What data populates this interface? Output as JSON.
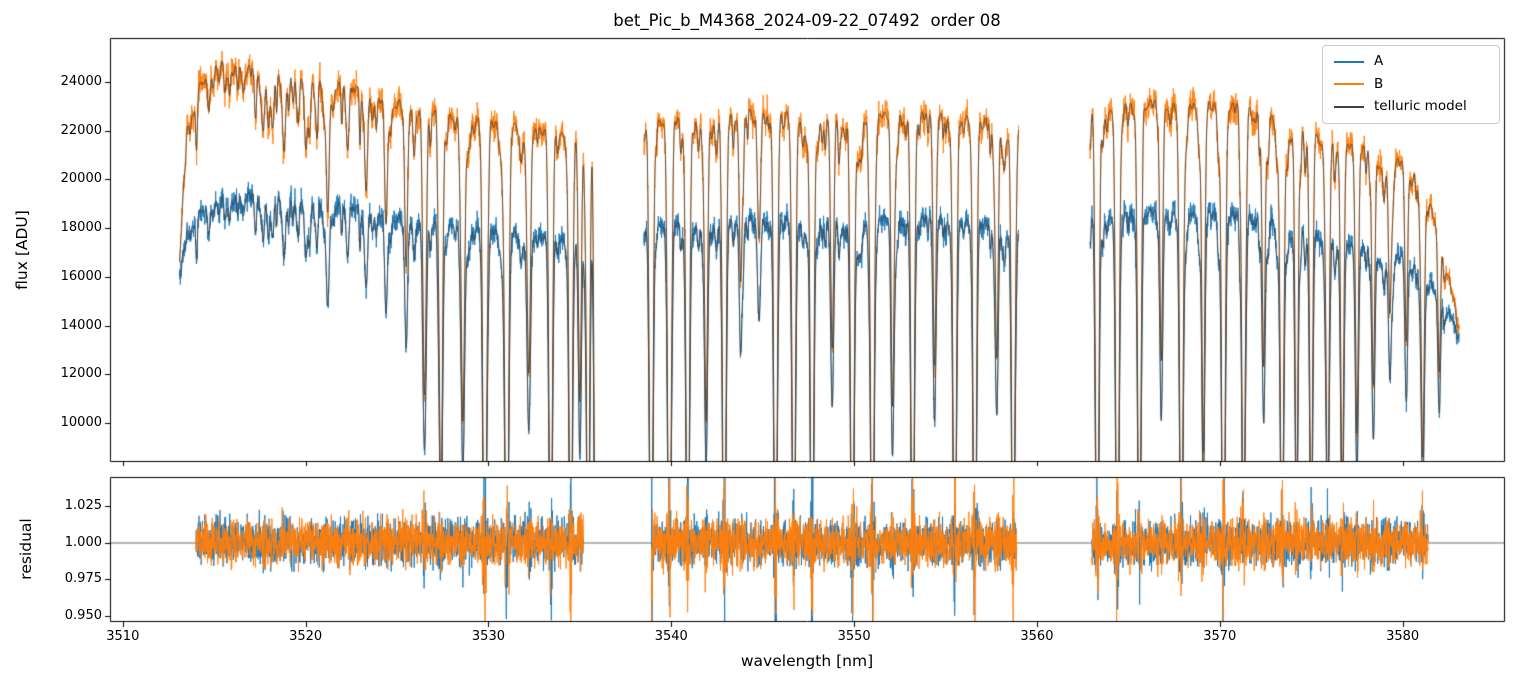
{
  "chart_data": {
    "type": "line",
    "title": "bet_Pic_b_M4368_2024-09-22_07492  order 08",
    "xlabel": "wavelength [nm]",
    "xlim": [
      3509.3,
      3585.6
    ],
    "xticks": [
      3510,
      3520,
      3530,
      3540,
      3550,
      3560,
      3570,
      3580
    ],
    "xtick_labels": [
      "3510",
      "3520",
      "3530",
      "3540",
      "3550",
      "3560",
      "3570",
      "3580"
    ],
    "top_panel": {
      "ylabel": "flux [ADU]",
      "ylim": [
        8400,
        25800
      ],
      "yticks": [
        10000,
        12000,
        14000,
        16000,
        18000,
        20000,
        22000,
        24000
      ],
      "ytick_labels": [
        "10000",
        "12000",
        "14000",
        "16000",
        "18000",
        "20000",
        "22000",
        "24000"
      ]
    },
    "bottom_panel": {
      "ylabel": "residual",
      "ylim": [
        0.946,
        1.0445
      ],
      "yticks": [
        0.95,
        0.975,
        1.0,
        1.025
      ],
      "ytick_labels": [
        "0.950",
        "0.975",
        "1.000",
        "1.025"
      ],
      "hline": 1.0
    },
    "legend": {
      "position": "upper right",
      "entries": [
        {
          "label": "A",
          "color": "#1f77b4"
        },
        {
          "label": "B",
          "color": "#ff7f0e"
        },
        {
          "label": "telluric model",
          "color": "#3f3f3f"
        }
      ]
    },
    "segments": [
      [
        3513.1,
        3535.9
      ],
      [
        3538.5,
        3559.0
      ],
      [
        3562.9,
        3583.1
      ]
    ],
    "residual_segments": [
      [
        3514.0,
        3535.2
      ],
      [
        3538.9,
        3558.9
      ],
      [
        3563.0,
        3581.4
      ]
    ],
    "series": [
      {
        "name": "A",
        "color": "#1f77b4",
        "continuum": [
          [
            3513.0,
            15800
          ],
          [
            3513.5,
            17800
          ],
          [
            3514.3,
            18900
          ],
          [
            3515.5,
            19400
          ],
          [
            3517.0,
            19500
          ],
          [
            3519.0,
            19400
          ],
          [
            3521.0,
            19200
          ],
          [
            3523.0,
            18900
          ],
          [
            3525.0,
            18650
          ],
          [
            3527.0,
            18400
          ],
          [
            3529.0,
            18150
          ],
          [
            3531.0,
            17950
          ],
          [
            3533.0,
            17750
          ],
          [
            3535.9,
            17550
          ],
          [
            3538.5,
            18150
          ],
          [
            3540.0,
            18250
          ],
          [
            3542.0,
            18400
          ],
          [
            3544.0,
            18550
          ],
          [
            3545.5,
            18600
          ],
          [
            3547.0,
            18450
          ],
          [
            3549.0,
            18400
          ],
          [
            3551.0,
            18500
          ],
          [
            3553.0,
            18550
          ],
          [
            3555.0,
            18450
          ],
          [
            3557.0,
            18400
          ],
          [
            3559.0,
            18150
          ],
          [
            3562.9,
            18650
          ],
          [
            3564.5,
            18750
          ],
          [
            3566.5,
            18800
          ],
          [
            3568.5,
            18780
          ],
          [
            3570.5,
            18750
          ],
          [
            3572.0,
            18600
          ],
          [
            3573.5,
            18300
          ],
          [
            3575.0,
            17900
          ],
          [
            3576.5,
            17500
          ],
          [
            3578.0,
            17300
          ],
          [
            3579.5,
            17050
          ],
          [
            3580.8,
            16600
          ],
          [
            3581.8,
            15600
          ],
          [
            3582.6,
            14500
          ],
          [
            3583.1,
            13700
          ]
        ]
      },
      {
        "name": "B",
        "color": "#ff7f0e",
        "continuum": [
          [
            3513.0,
            15500
          ],
          [
            3513.5,
            22000
          ],
          [
            3514.3,
            24200
          ],
          [
            3515.3,
            25000
          ],
          [
            3516.5,
            24800
          ],
          [
            3518.0,
            24400
          ],
          [
            3519.5,
            24500
          ],
          [
            3521.0,
            24200
          ],
          [
            3522.5,
            23900
          ],
          [
            3524.0,
            23500
          ],
          [
            3525.5,
            23350
          ],
          [
            3527.0,
            23000
          ],
          [
            3528.5,
            22700
          ],
          [
            3530.0,
            22500
          ],
          [
            3531.5,
            22300
          ],
          [
            3533.0,
            22150
          ],
          [
            3535.9,
            21800
          ],
          [
            3538.5,
            22400
          ],
          [
            3540.0,
            22500
          ],
          [
            3542.0,
            22700
          ],
          [
            3544.0,
            22900
          ],
          [
            3545.5,
            23000
          ],
          [
            3547.0,
            22700
          ],
          [
            3549.0,
            22600
          ],
          [
            3551.0,
            22800
          ],
          [
            3553.0,
            22800
          ],
          [
            3555.0,
            22700
          ],
          [
            3557.0,
            22600
          ],
          [
            3559.0,
            22300
          ],
          [
            3562.9,
            23000
          ],
          [
            3564.5,
            23200
          ],
          [
            3566.5,
            23300
          ],
          [
            3568.5,
            23250
          ],
          [
            3570.5,
            23200
          ],
          [
            3572.0,
            22950
          ],
          [
            3573.5,
            22500
          ],
          [
            3575.0,
            22000
          ],
          [
            3576.5,
            21600
          ],
          [
            3578.0,
            21400
          ],
          [
            3579.5,
            21000
          ],
          [
            3580.8,
            20300
          ],
          [
            3581.8,
            18500
          ],
          [
            3582.6,
            15800
          ],
          [
            3583.1,
            14000
          ]
        ]
      },
      {
        "name": "telluric model",
        "color": "#3f3f3f"
      }
    ],
    "telluric_lines": [
      [
        3514.7,
        0.06,
        0.07
      ],
      [
        3515.6,
        0.05,
        0.06
      ],
      [
        3516.6,
        0.05,
        0.07
      ],
      [
        3517.7,
        0.07,
        0.07
      ],
      [
        3518.8,
        0.09,
        0.08
      ],
      [
        3520.0,
        0.09,
        0.08
      ],
      [
        3521.2,
        0.2,
        0.08
      ],
      [
        3522.3,
        0.1,
        0.07
      ],
      [
        3523.3,
        0.17,
        0.08
      ],
      [
        3524.4,
        0.22,
        0.08
      ],
      [
        3525.5,
        0.28,
        0.08
      ],
      [
        3526.5,
        0.5,
        0.09
      ],
      [
        3527.4,
        0.72,
        0.09
      ],
      [
        3528.6,
        0.55,
        0.09
      ],
      [
        3529.8,
        0.96,
        0.1
      ],
      [
        3531.0,
        0.96,
        0.1
      ],
      [
        3532.2,
        0.45,
        0.09
      ],
      [
        3533.4,
        0.88,
        0.09
      ],
      [
        3534.5,
        0.92,
        0.09
      ],
      [
        3535.0,
        0.5,
        0.08
      ],
      [
        3535.45,
        0.93,
        0.08
      ],
      [
        3535.85,
        0.96,
        0.07
      ],
      [
        3538.9,
        0.97,
        0.09
      ],
      [
        3539.9,
        0.97,
        0.09
      ],
      [
        3540.9,
        0.92,
        0.09
      ],
      [
        3541.9,
        0.55,
        0.08
      ],
      [
        3542.9,
        0.97,
        0.09
      ],
      [
        3543.8,
        0.3,
        0.08
      ],
      [
        3544.8,
        0.22,
        0.08
      ],
      [
        3545.7,
        0.97,
        0.09
      ],
      [
        3546.7,
        0.88,
        0.09
      ],
      [
        3547.7,
        0.97,
        0.09
      ],
      [
        3548.8,
        0.42,
        0.08
      ],
      [
        3549.9,
        0.92,
        0.09
      ],
      [
        3551.0,
        0.97,
        0.09
      ],
      [
        3552.1,
        0.5,
        0.08
      ],
      [
        3553.2,
        0.92,
        0.09
      ],
      [
        3554.4,
        0.45,
        0.08
      ],
      [
        3555.5,
        0.92,
        0.09
      ],
      [
        3556.6,
        0.97,
        0.09
      ],
      [
        3557.8,
        0.42,
        0.08
      ],
      [
        3558.7,
        0.88,
        0.09
      ],
      [
        3563.3,
        0.92,
        0.09
      ],
      [
        3564.4,
        0.97,
        0.09
      ],
      [
        3565.6,
        0.88,
        0.09
      ],
      [
        3566.8,
        0.45,
        0.08
      ],
      [
        3567.9,
        0.92,
        0.09
      ],
      [
        3569.1,
        0.6,
        0.08
      ],
      [
        3570.2,
        0.97,
        0.09
      ],
      [
        3571.3,
        0.82,
        0.09
      ],
      [
        3572.4,
        0.45,
        0.08
      ],
      [
        3573.4,
        0.85,
        0.09
      ],
      [
        3574.2,
        0.72,
        0.08
      ],
      [
        3575.0,
        0.78,
        0.08
      ],
      [
        3575.9,
        0.72,
        0.08
      ],
      [
        3576.7,
        0.68,
        0.08
      ],
      [
        3577.5,
        0.55,
        0.08
      ],
      [
        3578.4,
        0.45,
        0.08
      ],
      [
        3579.3,
        0.3,
        0.07
      ],
      [
        3580.2,
        0.35,
        0.07
      ],
      [
        3581.1,
        0.55,
        0.08
      ],
      [
        3582.0,
        0.3,
        0.07
      ]
    ],
    "noise": {
      "flux_sigma_frac": 0.013,
      "residual_sigma": 0.0075,
      "weak_line_seed": 7,
      "series_seeds": {
        "A": 101,
        "B": 202,
        "residual_A": 303,
        "residual_B": 404
      }
    }
  }
}
